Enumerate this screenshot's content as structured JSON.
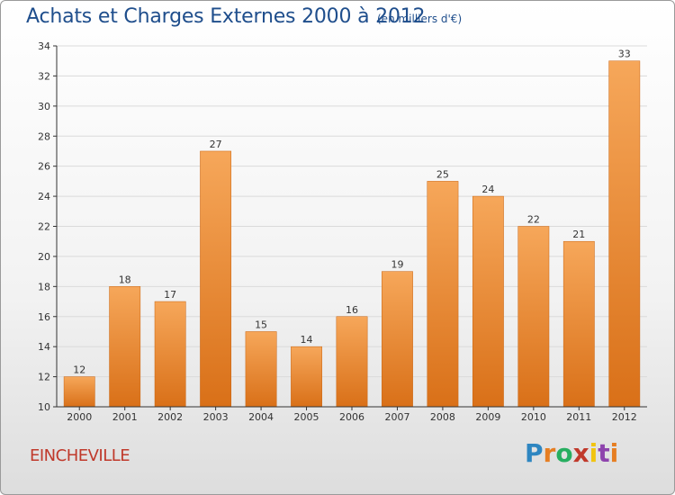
{
  "title": "Achats et Charges Externes 2000 à 2012",
  "title_unit": "(en milliers d'€)",
  "commune": "EINCHEVILLE",
  "logo": {
    "letters": [
      "P",
      "r",
      "o",
      "x",
      "i",
      "t",
      "i"
    ],
    "colors": [
      "#2e86c1",
      "#e67e22",
      "#27ae60",
      "#c0392b",
      "#f1c40f",
      "#8e44ad",
      "#e67e22"
    ]
  },
  "colors": {
    "bar_top": "#f6a75a",
    "bar_bottom": "#d97018",
    "axis": "#333333",
    "grid": "#dadada",
    "title": "#1f4e8c",
    "commune": "#c0392b"
  },
  "chart_data": {
    "type": "bar",
    "title": "Achats et Charges Externes 2000 à 2012",
    "xlabel": "",
    "ylabel": "",
    "categories": [
      "2000",
      "2001",
      "2002",
      "2003",
      "2004",
      "2005",
      "2006",
      "2007",
      "2008",
      "2009",
      "2010",
      "2011",
      "2012"
    ],
    "values": [
      12,
      18,
      17,
      27,
      15,
      14,
      16,
      19,
      25,
      24,
      22,
      21,
      33
    ],
    "ylim": [
      10,
      34
    ],
    "yticks": [
      10,
      12,
      14,
      16,
      18,
      20,
      22,
      24,
      26,
      28,
      30,
      32,
      34
    ],
    "grid": true
  }
}
